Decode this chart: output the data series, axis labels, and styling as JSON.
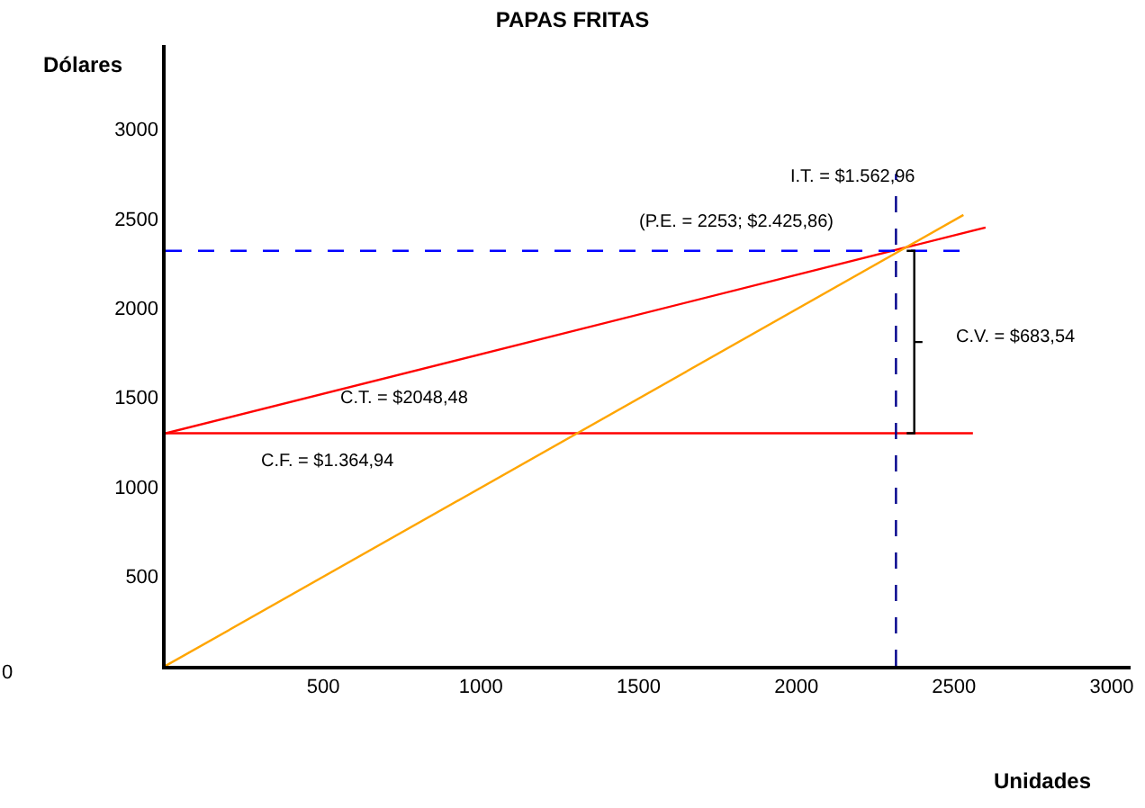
{
  "chart_data": {
    "type": "line",
    "title": "PAPAS FRITAS",
    "xlabel": "Unidades",
    "ylabel": "Dólares",
    "xlim": [
      0,
      3060
    ],
    "ylim": [
      0,
      3470
    ],
    "xticks": [
      500,
      1000,
      1500,
      2000,
      2500,
      3000
    ],
    "yticks": [
      500,
      1000,
      1500,
      2000,
      2500,
      3000
    ],
    "marker": "none",
    "series": [
      {
        "x": [
          0,
          2560
        ],
        "values": [
          1300,
          1300
        ],
        "color": "#ff0000",
        "line_style": "solid"
      },
      {
        "x": [
          0,
          2600
        ],
        "values": [
          1300,
          2450
        ],
        "color": "#ff0000",
        "line_style": "solid"
      },
      {
        "x": [
          0,
          2530
        ],
        "values": [
          0,
          2520
        ],
        "color": "#ffa500",
        "line_style": "solid"
      },
      {
        "x": [
          0,
          2530
        ],
        "values": [
          2320,
          2320
        ],
        "color": "#0000ff",
        "line_style": "dashed"
      },
      {
        "x": [
          2316,
          2316
        ],
        "values": [
          0,
          2750
        ],
        "color": "#00008b",
        "line_style": "dashed"
      },
      {
        "x": [
          2350,
          2374,
          2374,
          2400,
          2374,
          2374,
          2350
        ],
        "values": [
          2320,
          2320,
          1810,
          1810,
          1810,
          1300,
          1300
        ],
        "color": "#000000",
        "line_style": "solid"
      }
    ],
    "annotations": [
      "I.T. = $1.562,96",
      "(P.E. = 2253; $2.425,86)",
      "C.V. = $683,54",
      "C.T. = $2048,48",
      "C.F. = $1.364,94",
      "0"
    ]
  }
}
